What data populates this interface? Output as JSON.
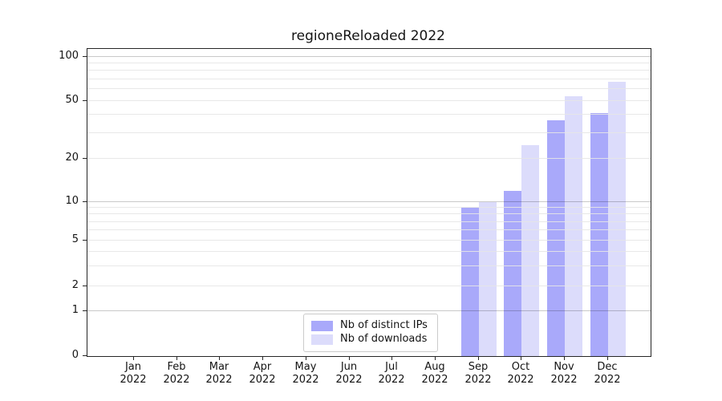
{
  "title": "regioneReloaded 2022",
  "chart_data": {
    "type": "bar",
    "title": "regioneReloaded 2022",
    "categories": [
      "Jan",
      "Feb",
      "Mar",
      "Apr",
      "May",
      "Jun",
      "Jul",
      "Aug",
      "Sep",
      "Oct",
      "Nov",
      "Dec"
    ],
    "year_label": "2022",
    "series": [
      {
        "name": "Nb of distinct IPs",
        "color": "#a9a9fa",
        "values": [
          0,
          0,
          0,
          0,
          0,
          0,
          0,
          0,
          9,
          12,
          37,
          41
        ]
      },
      {
        "name": "Nb of downloads",
        "color": "#dcdcfb",
        "values": [
          0,
          0,
          0,
          0,
          0,
          0,
          0,
          0,
          10,
          25,
          54,
          67
        ]
      }
    ],
    "y_axis": {
      "scale": "log-like above 1, linear 0-1",
      "tick_values": [
        0,
        1,
        2,
        5,
        10,
        20,
        50,
        100
      ],
      "tick_labels": [
        "0",
        "1",
        "2",
        "5",
        "10",
        "20",
        "50",
        "100"
      ],
      "anchors": [
        {
          "value": 0,
          "pos": 0.0
        },
        {
          "value": 1,
          "pos": 0.145
        },
        {
          "value": 2,
          "pos": 0.226
        },
        {
          "value": 5,
          "pos": 0.376
        },
        {
          "value": 10,
          "pos": 0.502
        },
        {
          "value": 20,
          "pos": 0.641
        },
        {
          "value": 50,
          "pos": 0.831
        },
        {
          "value": 100,
          "pos": 0.975
        }
      ],
      "major_grid_values": [
        1,
        10,
        100
      ],
      "grid_values": [
        1,
        2,
        3,
        4,
        5,
        6,
        7,
        8,
        9,
        10,
        20,
        30,
        40,
        50,
        60,
        70,
        80,
        90,
        100
      ]
    },
    "legend": {
      "position": "bottom-center",
      "entries": [
        "Nb of distinct IPs",
        "Nb of downloads"
      ]
    },
    "grid": true,
    "colors": {
      "bar_dark": "#a9a9fa",
      "bar_light": "#dcdcfb",
      "major_grid": "rgba(0,0,0,0.21)",
      "minor_grid": "rgba(229,229,229,0.9)",
      "axis": "#262626",
      "text": "#141414",
      "legend_border": "#cbcbcb"
    }
  }
}
